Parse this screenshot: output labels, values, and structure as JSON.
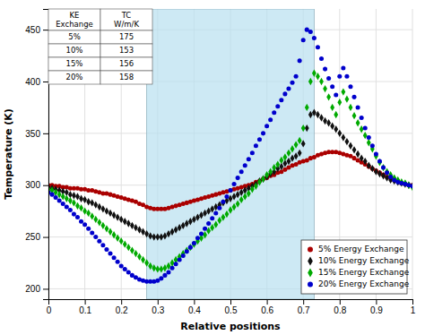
{
  "chart_data": {
    "type": "scatter",
    "xlabel": "Relative positions",
    "ylabel": "Temperature (K)",
    "xlim": [
      0,
      1
    ],
    "ylim": [
      190,
      470
    ],
    "xticks": [
      0,
      0.1,
      0.2,
      0.3,
      0.4,
      0.5,
      0.6,
      0.7,
      0.8,
      0.9,
      1
    ],
    "yticks": [
      200,
      250,
      300,
      350,
      400,
      450
    ],
    "grid": true,
    "legend": "lower right",
    "shaded_region": {
      "x": [
        0.27,
        0.73
      ],
      "color": "#b8e0f0"
    },
    "table": {
      "columns": [
        "KE\nExchange",
        "TC\nW/m/K"
      ],
      "rows": [
        [
          "5%",
          "175"
        ],
        [
          "10%",
          "153"
        ],
        [
          "15%",
          "156"
        ],
        [
          "20%",
          "158"
        ]
      ]
    },
    "series": [
      {
        "name": "5% Energy Exchange",
        "color": "#aa0000",
        "marker": "circle",
        "x": [
          0.0,
          0.01,
          0.02,
          0.03,
          0.04,
          0.05,
          0.06,
          0.07,
          0.08,
          0.09,
          0.1,
          0.11,
          0.12,
          0.13,
          0.14,
          0.15,
          0.16,
          0.17,
          0.18,
          0.19,
          0.2,
          0.21,
          0.22,
          0.23,
          0.24,
          0.25,
          0.26,
          0.27,
          0.28,
          0.29,
          0.3,
          0.31,
          0.32,
          0.33,
          0.34,
          0.35,
          0.36,
          0.37,
          0.38,
          0.39,
          0.4,
          0.41,
          0.42,
          0.43,
          0.44,
          0.45,
          0.46,
          0.47,
          0.48,
          0.49,
          0.5,
          0.51,
          0.52,
          0.53,
          0.54,
          0.55,
          0.56,
          0.57,
          0.58,
          0.59,
          0.6,
          0.61,
          0.62,
          0.63,
          0.64,
          0.65,
          0.66,
          0.67,
          0.68,
          0.69,
          0.7,
          0.71,
          0.72,
          0.73,
          0.74,
          0.75,
          0.76,
          0.77,
          0.78,
          0.79,
          0.8,
          0.81,
          0.82,
          0.83,
          0.84,
          0.85,
          0.86,
          0.87,
          0.88,
          0.89,
          0.9,
          0.91,
          0.92,
          0.93,
          0.94,
          0.95,
          0.96,
          0.97,
          0.98,
          0.99,
          1.0
        ],
        "values": [
          300,
          300,
          299,
          299,
          298,
          298,
          297,
          297,
          297,
          296,
          296,
          295,
          295,
          294,
          293,
          292,
          292,
          291,
          290,
          289,
          288,
          287,
          286,
          285,
          284,
          282,
          281,
          279,
          278,
          277,
          277,
          277,
          277,
          278,
          279,
          280,
          281,
          282,
          283,
          284,
          285,
          286,
          287,
          288,
          289,
          290,
          291,
          292,
          293,
          294,
          295,
          296,
          297,
          298,
          299,
          300,
          301,
          303,
          304,
          306,
          307,
          309,
          310,
          312,
          313,
          315,
          317,
          319,
          320,
          322,
          323,
          324,
          326,
          327,
          329,
          330,
          331,
          332,
          332,
          332,
          331,
          330,
          329,
          328,
          326,
          324,
          322,
          320,
          318,
          316,
          314,
          312,
          310,
          308,
          307,
          305,
          304,
          302,
          301,
          300,
          300
        ]
      },
      {
        "name": "10% Energy Exchange",
        "color": "#111111",
        "marker": "diamond",
        "x": [
          0.0,
          0.01,
          0.02,
          0.03,
          0.04,
          0.05,
          0.06,
          0.07,
          0.08,
          0.09,
          0.1,
          0.11,
          0.12,
          0.13,
          0.14,
          0.15,
          0.16,
          0.17,
          0.18,
          0.19,
          0.2,
          0.21,
          0.22,
          0.23,
          0.24,
          0.25,
          0.26,
          0.27,
          0.28,
          0.29,
          0.3,
          0.31,
          0.32,
          0.33,
          0.34,
          0.35,
          0.36,
          0.37,
          0.38,
          0.39,
          0.4,
          0.41,
          0.42,
          0.43,
          0.44,
          0.45,
          0.46,
          0.47,
          0.48,
          0.49,
          0.5,
          0.51,
          0.52,
          0.53,
          0.54,
          0.55,
          0.56,
          0.57,
          0.58,
          0.59,
          0.6,
          0.61,
          0.62,
          0.63,
          0.64,
          0.65,
          0.66,
          0.67,
          0.68,
          0.69,
          0.7,
          0.71,
          0.72,
          0.73,
          0.74,
          0.75,
          0.76,
          0.77,
          0.78,
          0.79,
          0.8,
          0.81,
          0.82,
          0.83,
          0.84,
          0.85,
          0.86,
          0.87,
          0.88,
          0.89,
          0.9,
          0.91,
          0.92,
          0.93,
          0.94,
          0.95,
          0.96,
          0.97,
          0.98,
          0.99,
          1.0
        ],
        "values": [
          298,
          297,
          296,
          295,
          294,
          293,
          291,
          290,
          289,
          287,
          286,
          284,
          283,
          281,
          279,
          277,
          275,
          273,
          271,
          269,
          267,
          265,
          263,
          261,
          259,
          257,
          255,
          253,
          251,
          250,
          250,
          250,
          251,
          253,
          255,
          257,
          259,
          261,
          263,
          265,
          267,
          269,
          271,
          273,
          275,
          277,
          279,
          281,
          283,
          285,
          287,
          289,
          291,
          293,
          295,
          297,
          299,
          301,
          304,
          306,
          308,
          311,
          313,
          316,
          318,
          321,
          323,
          326,
          328,
          331,
          340,
          355,
          368,
          370,
          368,
          365,
          362,
          360,
          357,
          354,
          350,
          346,
          342,
          338,
          334,
          330,
          326,
          323,
          319,
          316,
          313,
          311,
          309,
          307,
          305,
          304,
          303,
          302,
          301,
          300,
          299
        ]
      },
      {
        "name": "15% Energy Exchange",
        "color": "#00aa00",
        "marker": "diamond",
        "x": [
          0.0,
          0.01,
          0.02,
          0.03,
          0.04,
          0.05,
          0.06,
          0.07,
          0.08,
          0.09,
          0.1,
          0.11,
          0.12,
          0.13,
          0.14,
          0.15,
          0.16,
          0.17,
          0.18,
          0.19,
          0.2,
          0.21,
          0.22,
          0.23,
          0.24,
          0.25,
          0.26,
          0.27,
          0.28,
          0.29,
          0.3,
          0.31,
          0.32,
          0.33,
          0.34,
          0.35,
          0.36,
          0.37,
          0.38,
          0.39,
          0.4,
          0.41,
          0.42,
          0.43,
          0.44,
          0.45,
          0.46,
          0.47,
          0.48,
          0.49,
          0.5,
          0.51,
          0.52,
          0.53,
          0.54,
          0.55,
          0.56,
          0.57,
          0.58,
          0.59,
          0.6,
          0.61,
          0.62,
          0.63,
          0.64,
          0.65,
          0.66,
          0.67,
          0.68,
          0.69,
          0.7,
          0.71,
          0.72,
          0.73,
          0.74,
          0.75,
          0.76,
          0.77,
          0.78,
          0.79,
          0.8,
          0.81,
          0.82,
          0.83,
          0.84,
          0.85,
          0.86,
          0.87,
          0.88,
          0.89,
          0.9,
          0.91,
          0.92,
          0.93,
          0.94,
          0.95,
          0.96,
          0.97,
          0.98,
          0.99,
          1.0
        ],
        "values": [
          296,
          295,
          293,
          291,
          289,
          287,
          285,
          283,
          280,
          278,
          275,
          273,
          270,
          267,
          264,
          261,
          258,
          255,
          252,
          249,
          246,
          243,
          240,
          237,
          234,
          231,
          228,
          225,
          222,
          220,
          219,
          219,
          220,
          222,
          225,
          228,
          231,
          234,
          237,
          240,
          243,
          246,
          249,
          252,
          256,
          259,
          262,
          266,
          269,
          272,
          276,
          279,
          282,
          286,
          289,
          292,
          296,
          299,
          303,
          306,
          310,
          313,
          317,
          320,
          324,
          327,
          331,
          335,
          339,
          343,
          355,
          375,
          400,
          408,
          405,
          400,
          393,
          385,
          375,
          368,
          380,
          390,
          383,
          375,
          367,
          360,
          354,
          348,
          341,
          335,
          328,
          322,
          317,
          313,
          310,
          307,
          305,
          303,
          302,
          300,
          298
        ]
      },
      {
        "name": "20% Energy Exchange",
        "color": "#0000cc",
        "marker": "circle",
        "x": [
          0.0,
          0.01,
          0.02,
          0.03,
          0.04,
          0.05,
          0.06,
          0.07,
          0.08,
          0.09,
          0.1,
          0.11,
          0.12,
          0.13,
          0.14,
          0.15,
          0.16,
          0.17,
          0.18,
          0.19,
          0.2,
          0.21,
          0.22,
          0.23,
          0.24,
          0.25,
          0.26,
          0.27,
          0.28,
          0.29,
          0.3,
          0.31,
          0.32,
          0.33,
          0.34,
          0.35,
          0.36,
          0.37,
          0.38,
          0.39,
          0.4,
          0.41,
          0.42,
          0.43,
          0.44,
          0.45,
          0.46,
          0.47,
          0.48,
          0.49,
          0.5,
          0.51,
          0.52,
          0.53,
          0.54,
          0.55,
          0.56,
          0.57,
          0.58,
          0.59,
          0.6,
          0.61,
          0.62,
          0.63,
          0.64,
          0.65,
          0.66,
          0.67,
          0.68,
          0.69,
          0.7,
          0.71,
          0.72,
          0.73,
          0.74,
          0.75,
          0.76,
          0.77,
          0.78,
          0.79,
          0.8,
          0.81,
          0.82,
          0.83,
          0.84,
          0.85,
          0.86,
          0.87,
          0.88,
          0.89,
          0.9,
          0.91,
          0.92,
          0.93,
          0.94,
          0.95,
          0.96,
          0.97,
          0.98,
          0.99,
          1.0
        ],
        "values": [
          293,
          291,
          288,
          285,
          282,
          279,
          276,
          272,
          269,
          265,
          262,
          258,
          254,
          250,
          246,
          242,
          238,
          234,
          230,
          226,
          222,
          219,
          216,
          213,
          211,
          209,
          208,
          207,
          207,
          207,
          208,
          210,
          213,
          216,
          220,
          224,
          228,
          232,
          236,
          240,
          244,
          249,
          253,
          258,
          263,
          268,
          273,
          278,
          284,
          289,
          295,
          301,
          307,
          313,
          319,
          325,
          331,
          338,
          344,
          350,
          357,
          363,
          370,
          376,
          382,
          388,
          393,
          399,
          405,
          420,
          440,
          450,
          448,
          442,
          433,
          422,
          412,
          403,
          395,
          387,
          405,
          413,
          405,
          395,
          385,
          375,
          365,
          355,
          346,
          338,
          330,
          323,
          317,
          312,
          308,
          305,
          303,
          302,
          301,
          300,
          299
        ]
      }
    ]
  }
}
